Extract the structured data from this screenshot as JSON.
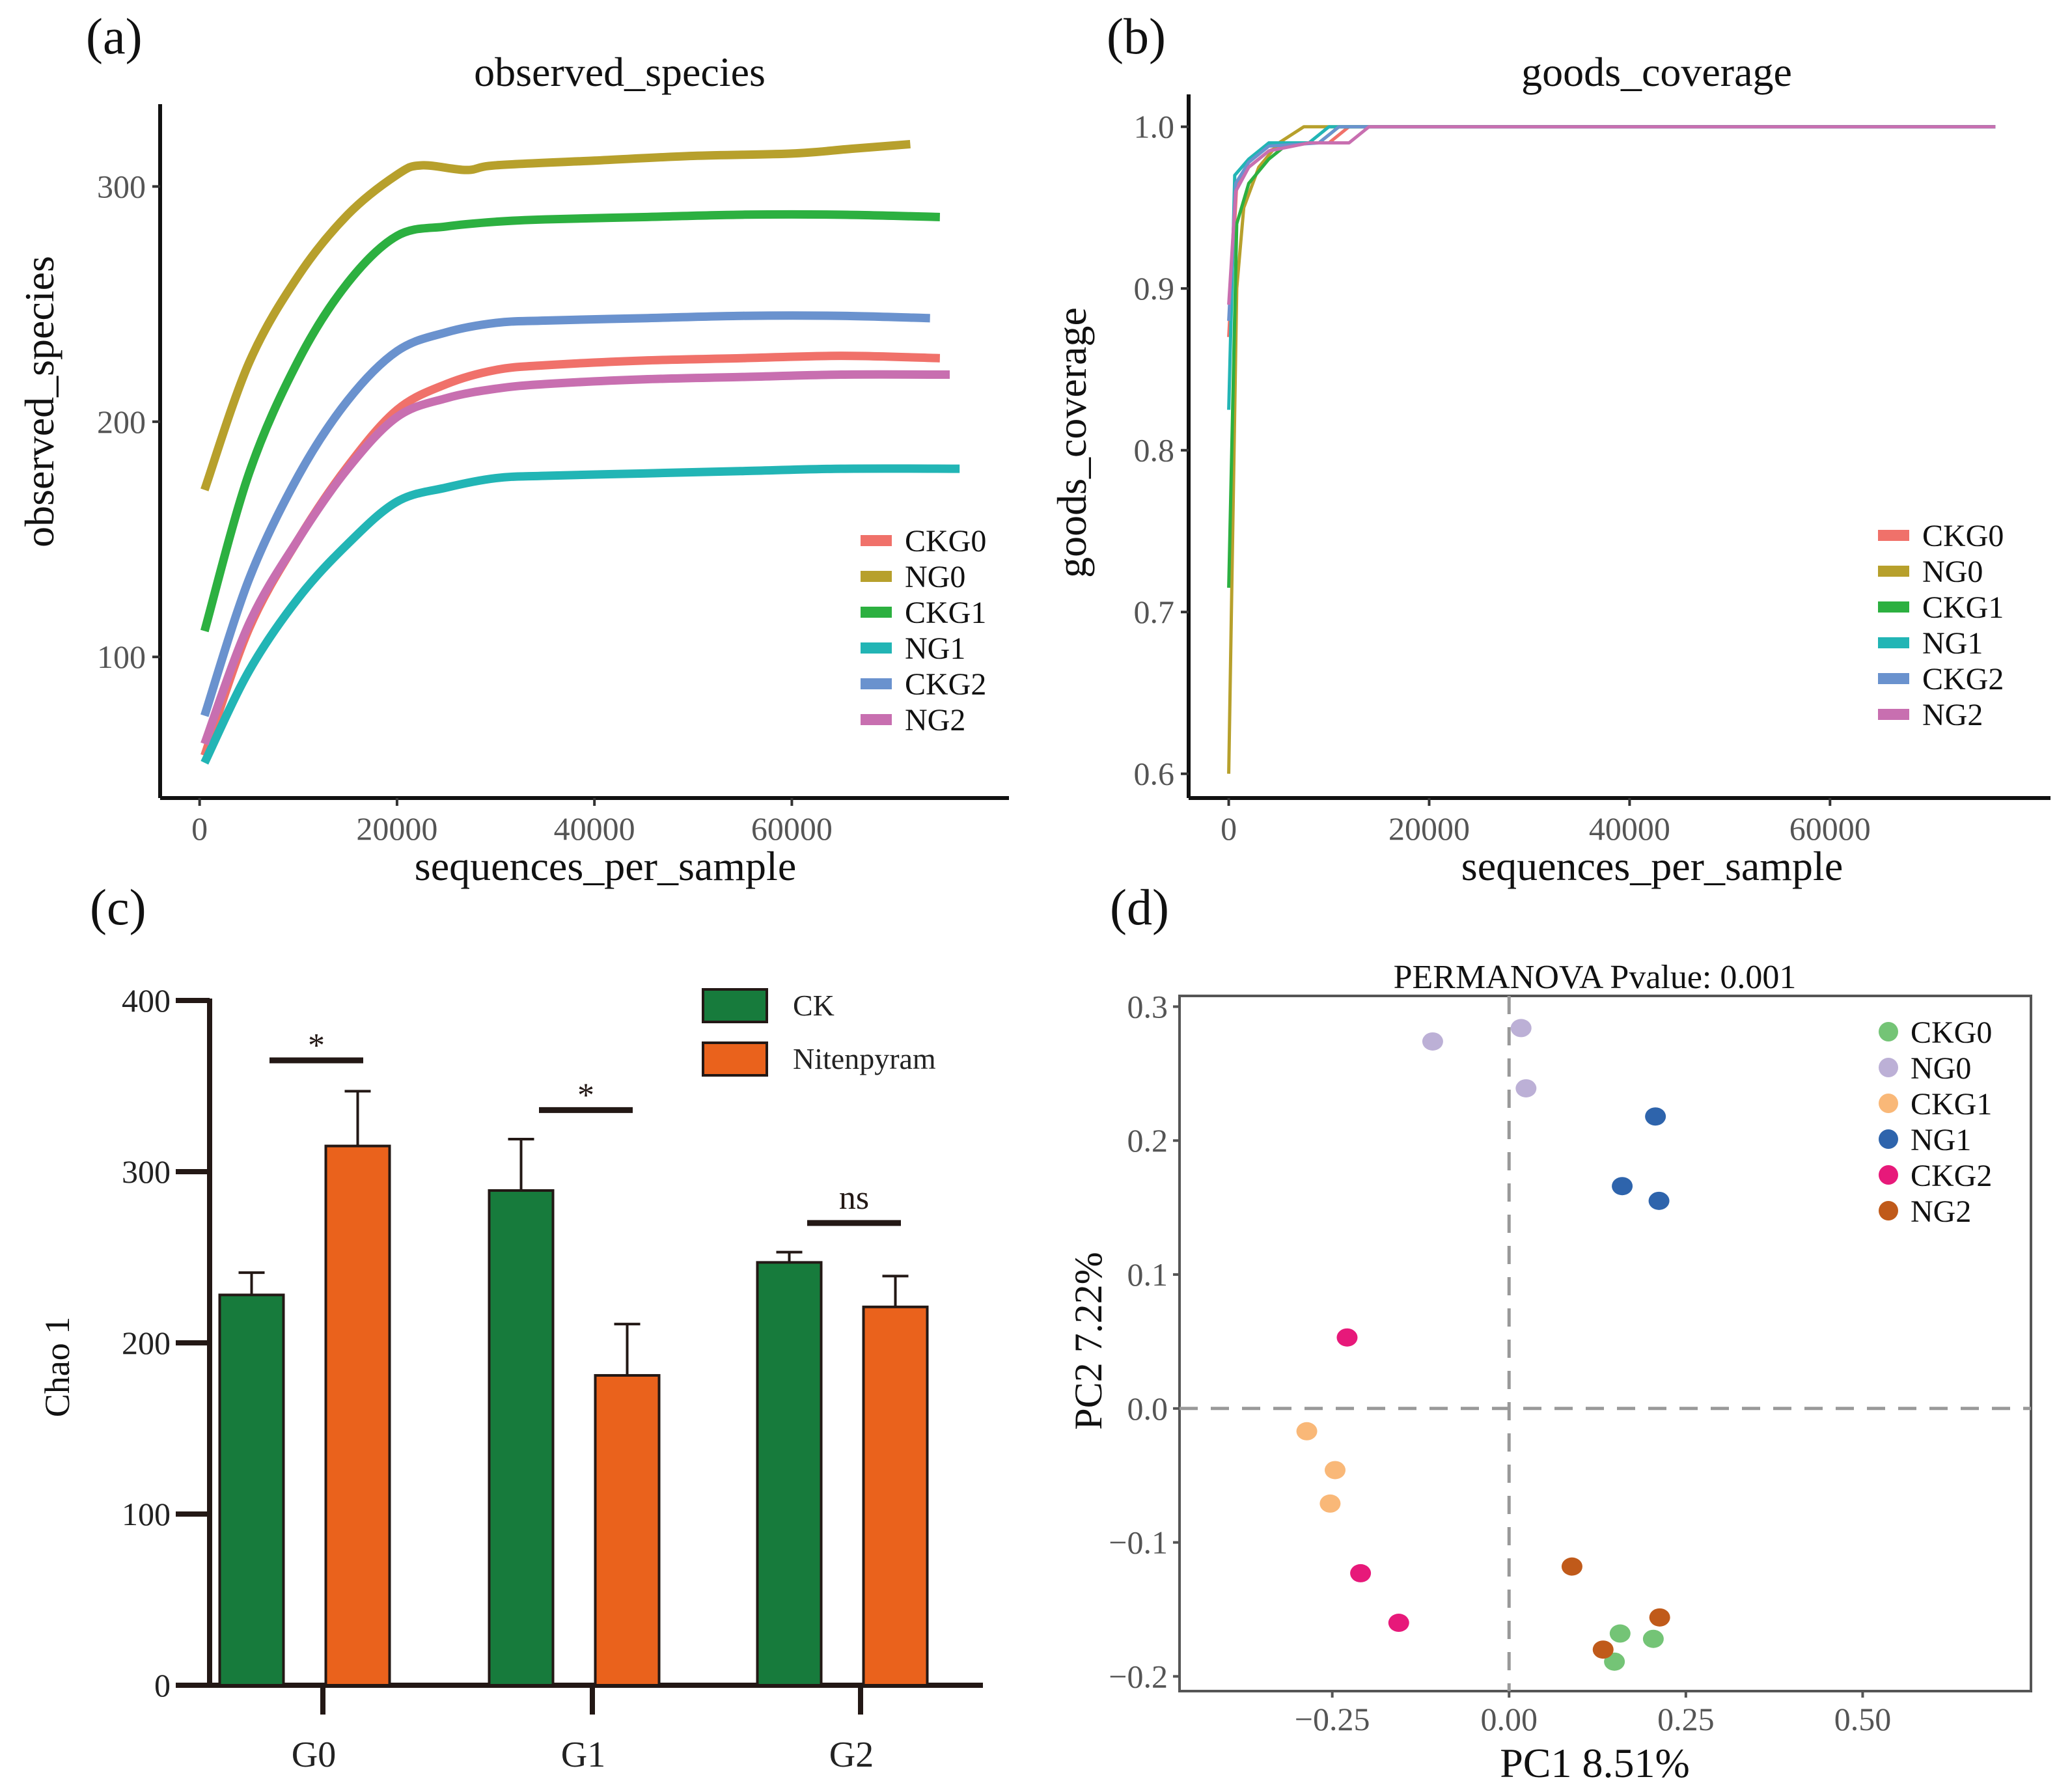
{
  "figure": {
    "panel_labels": [
      "(a)",
      "(b)",
      "(c)",
      "(d)"
    ]
  },
  "chart_data": [
    {
      "id": "a",
      "type": "line",
      "title": "observed_species",
      "xlabel": "sequences_per_sample",
      "ylabel": "observed_species",
      "xlim": [
        -4000,
        82000
      ],
      "ylim": [
        40,
        335
      ],
      "xticks": [
        0,
        20000,
        40000,
        60000
      ],
      "xtick_labels": [
        "0",
        "20000",
        "40000",
        "60000"
      ],
      "yticks": [
        100,
        200,
        300
      ],
      "ytick_labels": [
        "100",
        "200",
        "300"
      ],
      "grid": false,
      "legend_position": "bottom-right",
      "series": [
        {
          "name": "CKG0",
          "color": "#F0716A",
          "x": [
            500,
            5000,
            10000,
            15000,
            20000,
            25000,
            30000,
            35000,
            45000,
            55000,
            65000,
            75000
          ],
          "y": [
            58,
            112,
            150,
            181,
            205,
            216,
            222,
            224,
            226,
            227,
            228,
            227
          ]
        },
        {
          "name": "NG0",
          "color": "#B7A02C",
          "x": [
            500,
            5000,
            10000,
            15000,
            20000,
            22500,
            27000,
            30000,
            40000,
            50000,
            60000,
            66000,
            72000
          ],
          "y": [
            171,
            225,
            262,
            288,
            305,
            309,
            307,
            309,
            311,
            313,
            314,
            316,
            318
          ]
        },
        {
          "name": "CKG1",
          "color": "#2CB040",
          "x": [
            500,
            5000,
            10000,
            15000,
            20000,
            25000,
            30000,
            35000,
            45000,
            55000,
            65000,
            75000
          ],
          "y": [
            111,
            178,
            226,
            259,
            279,
            283,
            285,
            286,
            287,
            288,
            288,
            287
          ]
        },
        {
          "name": "NG1",
          "color": "#22B5B5",
          "x": [
            500,
            5000,
            10000,
            15000,
            20000,
            25000,
            30000,
            35000,
            45000,
            55000,
            65000,
            77000
          ],
          "y": [
            55,
            94,
            125,
            148,
            166,
            172,
            176,
            177,
            178,
            179,
            180,
            180
          ]
        },
        {
          "name": "CKG2",
          "color": "#6A92CE",
          "x": [
            500,
            5000,
            10000,
            15000,
            20000,
            25000,
            30000,
            35000,
            45000,
            55000,
            65000,
            74000
          ],
          "y": [
            75,
            133,
            177,
            209,
            230,
            238,
            242,
            243,
            244,
            245,
            245,
            244
          ]
        },
        {
          "name": "NG2",
          "color": "#C86FB0",
          "x": [
            500,
            5000,
            10000,
            15000,
            20000,
            25000,
            30000,
            35000,
            45000,
            55000,
            65000,
            76000
          ],
          "y": [
            63,
            114,
            150,
            180,
            202,
            210,
            214,
            216,
            218,
            219,
            220,
            220
          ]
        }
      ]
    },
    {
      "id": "b",
      "type": "line",
      "title": "goods_coverage",
      "xlabel": "sequences_per_sample",
      "ylabel": "goods_coverage",
      "xlim": [
        -4000,
        82000
      ],
      "ylim": [
        0.585,
        1.02
      ],
      "xticks": [
        0,
        20000,
        40000,
        60000
      ],
      "xtick_labels": [
        "0",
        "20000",
        "40000",
        "60000"
      ],
      "yticks": [
        0.6,
        0.7,
        0.8,
        0.9,
        1.0
      ],
      "ytick_labels": [
        "0.6",
        "0.7",
        "0.8",
        "0.9",
        "1.0"
      ],
      "grid": false,
      "legend_position": "bottom-right",
      "series": [
        {
          "name": "CKG0",
          "color": "#F0716A",
          "x": [
            0,
            800,
            2000,
            4000,
            6000,
            10000,
            12000,
            76500
          ],
          "y": [
            0.87,
            0.965,
            0.975,
            0.985,
            0.99,
            0.99,
            1.0,
            1.0
          ]
        },
        {
          "name": "NG0",
          "color": "#B7A02C",
          "x": [
            0,
            800,
            1500,
            3000,
            5000,
            7500,
            9000,
            76500
          ],
          "y": [
            0.6,
            0.9,
            0.95,
            0.975,
            0.99,
            1.0,
            1.0,
            1.0
          ]
        },
        {
          "name": "CKG1",
          "color": "#2CB040",
          "x": [
            0,
            800,
            2000,
            4000,
            6000,
            9000,
            11000,
            76500
          ],
          "y": [
            0.715,
            0.94,
            0.965,
            0.98,
            0.99,
            0.99,
            1.0,
            1.0
          ]
        },
        {
          "name": "NG1",
          "color": "#22B5B5",
          "x": [
            0,
            600,
            2000,
            4000,
            8000,
            10000,
            76500
          ],
          "y": [
            0.825,
            0.97,
            0.98,
            0.99,
            0.99,
            1.0,
            1.0
          ]
        },
        {
          "name": "CKG2",
          "color": "#6A92CE",
          "x": [
            0,
            700,
            2000,
            4000,
            9000,
            11000,
            76500
          ],
          "y": [
            0.88,
            0.965,
            0.978,
            0.988,
            0.99,
            1.0,
            1.0
          ]
        },
        {
          "name": "NG2",
          "color": "#C86FB0",
          "x": [
            0,
            700,
            2000,
            4000,
            8000,
            12000,
            14000,
            76500
          ],
          "y": [
            0.89,
            0.96,
            0.975,
            0.985,
            0.99,
            0.99,
            1.0,
            1.0
          ]
        }
      ]
    },
    {
      "id": "c",
      "type": "bar",
      "title": "",
      "xlabel": "",
      "ylabel": "Chao 1",
      "ylim": [
        0,
        400
      ],
      "yticks": [
        0,
        100,
        200,
        300,
        400
      ],
      "ytick_labels": [
        "0",
        "100",
        "200",
        "300",
        "400"
      ],
      "categories": [
        "G0",
        "G1",
        "G2"
      ],
      "legend_position": "top-right",
      "series": [
        {
          "name": "CK",
          "color": "#177B3C",
          "values": [
            228,
            289,
            247
          ],
          "errors": [
            13,
            30,
            6
          ]
        },
        {
          "name": "Nitenpyram",
          "color": "#EA621C",
          "values": [
            315,
            181,
            221
          ],
          "errors": [
            32,
            30,
            18
          ]
        }
      ],
      "significance": [
        {
          "category": "G0",
          "label": "*",
          "level": 365
        },
        {
          "category": "G1",
          "label": "*",
          "level": 336
        },
        {
          "category": "G2",
          "label": "ns",
          "level": 270
        }
      ]
    },
    {
      "id": "d",
      "type": "scatter",
      "title": "PERMANOVA Pvalue: 0.001",
      "xlabel": "PC1 8.51%",
      "ylabel": "PC2 7.22%",
      "xlim": [
        -0.466,
        0.738
      ],
      "ylim": [
        -0.211,
        0.308
      ],
      "xticks": [
        -0.25,
        0.0,
        0.25,
        0.5
      ],
      "xtick_labels": [
        "−0.25",
        "0.00",
        "0.25",
        "0.50"
      ],
      "yticks": [
        -0.2,
        -0.1,
        0.0,
        0.1,
        0.2,
        0.3
      ],
      "ytick_labels": [
        "−0.2",
        "−0.1",
        "0.0",
        "0.1",
        "0.2",
        "0.3"
      ],
      "reference_lines": {
        "x": 0,
        "y": 0
      },
      "grid": false,
      "legend_position": "top-right",
      "series": [
        {
          "name": "CKG0",
          "color": "#74C476",
          "points": [
            [
              0.157,
              -0.168
            ],
            [
              0.204,
              -0.172
            ],
            [
              0.149,
              -0.189
            ]
          ]
        },
        {
          "name": "NG0",
          "color": "#BCB0D6",
          "points": [
            [
              -0.108,
              0.274
            ],
            [
              0.017,
              0.284
            ],
            [
              0.024,
              0.239
            ]
          ]
        },
        {
          "name": "CKG1",
          "color": "#F9B878",
          "points": [
            [
              -0.286,
              -0.017
            ],
            [
              -0.246,
              -0.046
            ],
            [
              -0.253,
              -0.071
            ]
          ]
        },
        {
          "name": "NG1",
          "color": "#2E64AC",
          "points": [
            [
              0.207,
              0.218
            ],
            [
              0.16,
              0.166
            ],
            [
              0.212,
              0.155
            ]
          ]
        },
        {
          "name": "CKG2",
          "color": "#E7197A",
          "points": [
            [
              -0.229,
              0.053
            ],
            [
              -0.21,
              -0.123
            ],
            [
              -0.156,
              -0.16
            ]
          ]
        },
        {
          "name": "NG2",
          "color": "#C05A1A",
          "points": [
            [
              0.089,
              -0.118
            ],
            [
              0.213,
              -0.156
            ],
            [
              0.133,
              -0.18
            ]
          ]
        }
      ]
    }
  ]
}
